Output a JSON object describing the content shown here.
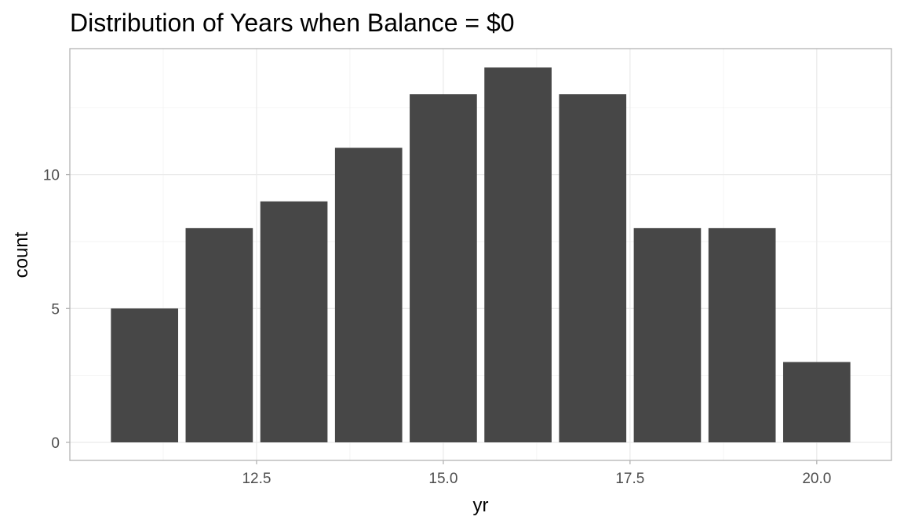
{
  "chart_data": {
    "type": "bar",
    "title": "Distribution of Years when Balance = $0",
    "xlabel": "yr",
    "ylabel": "count",
    "x": [
      11,
      12,
      13,
      14,
      15,
      16,
      17,
      18,
      19,
      20
    ],
    "values": [
      5,
      8,
      9,
      11,
      13,
      14,
      13,
      8,
      8,
      3
    ],
    "xlim": [
      10.5,
      20.5
    ],
    "ylim": [
      0,
      14
    ],
    "x_ticks": [
      12.5,
      15.0,
      17.5,
      20.0
    ],
    "x_tick_labels": [
      "12.5",
      "15.0",
      "17.5",
      "20.0"
    ],
    "y_ticks": [
      0,
      5,
      10
    ],
    "y_tick_labels": [
      "0",
      "5",
      "10"
    ],
    "grid": true,
    "bar_color": "#474747",
    "theme": "light"
  }
}
